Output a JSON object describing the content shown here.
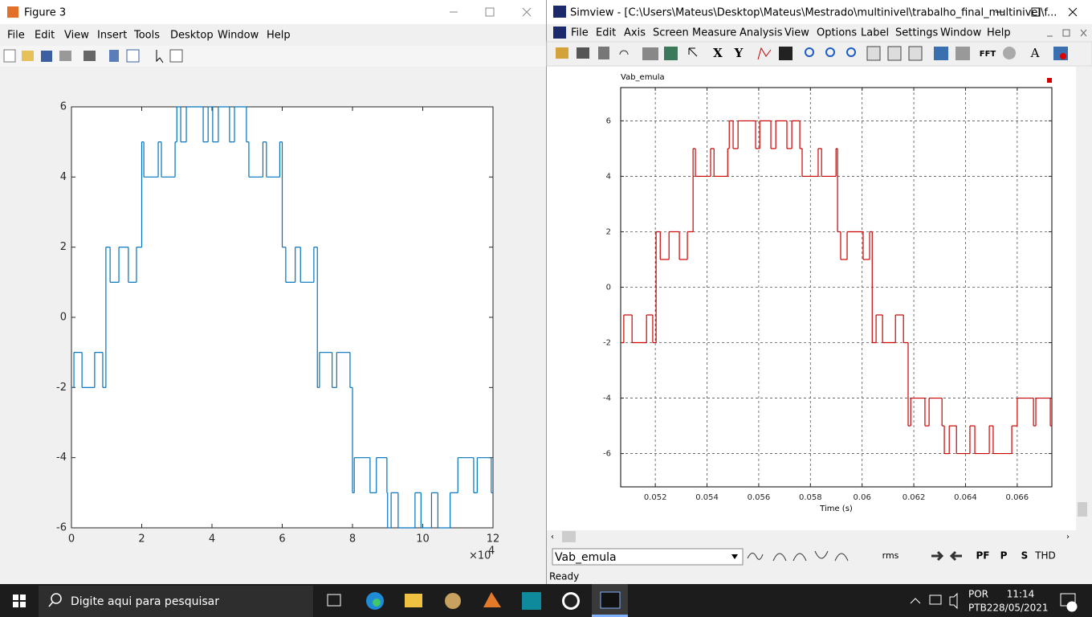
{
  "figure3": {
    "window_title": "Figure 3",
    "menu": [
      "File",
      "Edit",
      "View",
      "Insert",
      "Tools",
      "Desktop",
      "Window",
      "Help"
    ],
    "chart": {
      "type": "step-line",
      "x": [
        0,
        0.07,
        0.3,
        0.66,
        0.89,
        0.98,
        1.1,
        1.35,
        1.62,
        1.85,
        2,
        2.06,
        2.47,
        2.56,
        2.95,
        3,
        3.11,
        3.27,
        3.75,
        3.89,
        4.02,
        4.18,
        4.5,
        4.64,
        4.98,
        5.05,
        5.45,
        5.55,
        5.93,
        6,
        6.1,
        6.37,
        6.52,
        6.9,
        7,
        7.06,
        7.42,
        7.55,
        7.93,
        8,
        8.05,
        8.5,
        8.68,
        8.98,
        9,
        9.1,
        9.3,
        9.78,
        9.95,
        10.25,
        10.43,
        10.78,
        11,
        11.45,
        11.55,
        11.95
      ],
      "series": [
        {
          "color": "#0072bd",
          "values": [
            -2,
            -1,
            -2,
            -1,
            -2,
            2,
            1,
            2,
            1,
            2,
            5,
            4,
            5,
            4,
            5,
            6,
            5,
            6,
            5,
            6,
            5,
            6,
            5,
            6,
            5,
            4,
            5,
            4,
            5,
            2,
            1,
            2,
            1,
            2,
            -2,
            -1,
            -2,
            -1,
            -2,
            -5,
            -4,
            -5,
            -4,
            -5,
            -6,
            -5,
            -6,
            -5,
            -6,
            -5,
            -6,
            -5,
            -4,
            -5,
            -4,
            -5
          ]
        }
      ],
      "xlim": [
        0,
        12
      ],
      "ylim": [
        -6,
        6
      ],
      "xticks": [
        0,
        2,
        4,
        6,
        8,
        10,
        12
      ],
      "yticks": [
        -6,
        -4,
        -2,
        0,
        2,
        4,
        6
      ],
      "x_multiplier": "×10",
      "x_multiplier_exponent": "4",
      "grid": false
    }
  },
  "simview": {
    "window_title": "Simview - [C:\\Users\\Mateus\\Desktop\\Mateus\\Mestrado\\multinivel\\trabalho_final_multinivel\\f...",
    "menu": [
      "File",
      "Edit",
      "Axis",
      "Screen",
      "Measure",
      "Analysis",
      "View",
      "Options",
      "Label",
      "Settings",
      "Window",
      "Help"
    ],
    "toolbar_labels": [
      "X",
      "Y",
      "FFT",
      "A"
    ],
    "chart": {
      "type": "step-line",
      "xlabel": "Time (s)",
      "x": [
        0.05066,
        0.05078,
        0.0511,
        0.05166,
        0.0519,
        0.05203,
        0.05219,
        0.05253,
        0.05293,
        0.05324,
        0.05346,
        0.05355,
        0.05414,
        0.05427,
        0.0548,
        0.05486,
        0.05501,
        0.0552,
        0.05588,
        0.05604,
        0.05647,
        0.05666,
        0.05709,
        0.05728,
        0.05759,
        0.05768,
        0.0583,
        0.05843,
        0.05899,
        0.05905,
        0.05917,
        0.05942,
        0.06004,
        0.06029,
        0.06039,
        0.06054,
        0.06079,
        0.06129,
        0.0616,
        0.06178,
        0.06188,
        0.06243,
        0.06259,
        0.06309,
        0.06318,
        0.06337,
        0.06365,
        0.06417,
        0.06436,
        0.06492,
        0.06507,
        0.06579,
        0.066,
        0.06663,
        0.06672,
        0.06728
      ],
      "series": [
        {
          "name": "Vab_emula",
          "color": "#cc0000",
          "values": [
            -2,
            -1,
            -2,
            -1,
            -2,
            2,
            1,
            2,
            1,
            2,
            5,
            4,
            5,
            4,
            5,
            6,
            5,
            6,
            5,
            6,
            5,
            6,
            5,
            6,
            5,
            4,
            5,
            4,
            5,
            2,
            1,
            2,
            1,
            2,
            -2,
            -1,
            -2,
            -1,
            -2,
            -5,
            -4,
            -5,
            -4,
            -5,
            -6,
            -5,
            -6,
            -5,
            -6,
            -5,
            -6,
            -5,
            -4,
            -5,
            -4,
            -5
          ]
        }
      ],
      "xlim": [
        0.05066,
        0.06734
      ],
      "ylim": [
        -7.2,
        7.2
      ],
      "xticks": [
        0.052,
        0.054,
        0.056,
        0.058,
        0.06,
        0.062,
        0.064,
        0.066
      ],
      "yticks": [
        -6,
        -4,
        -2,
        0,
        2,
        4,
        6
      ],
      "grid": true
    },
    "signal_select": "Vab_emula",
    "bottom_toolbar": [
      "rms",
      "PF",
      "P",
      "S",
      "THD"
    ],
    "status": "Ready"
  },
  "taskbar": {
    "search": "Digite aqui para pesquisar",
    "language": "POR",
    "layout": "PTB2",
    "time": "11:14",
    "date": "28/05/2021"
  }
}
